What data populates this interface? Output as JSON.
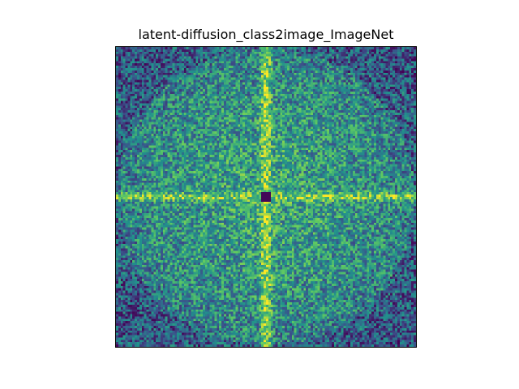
{
  "chart_data": {
    "type": "heatmap",
    "title": "latent-diffusion_class2image_ImageNet",
    "xlabel": "",
    "ylabel": "",
    "axes_ticks": "none",
    "grid": false,
    "legend": "none",
    "colormap": "viridis",
    "colormap_stops": [
      "#440154",
      "#3b528b",
      "#21918c",
      "#5ec962",
      "#fde725"
    ],
    "grid_cells": [
      128,
      128
    ],
    "value_range": [
      0,
      1
    ],
    "description_values": {
      "background_level": 0.45,
      "center_peak_dark": true,
      "horizontal_band_level": 0.8,
      "vertical_band_level": 0.85,
      "corner_level": 0.3
    }
  }
}
